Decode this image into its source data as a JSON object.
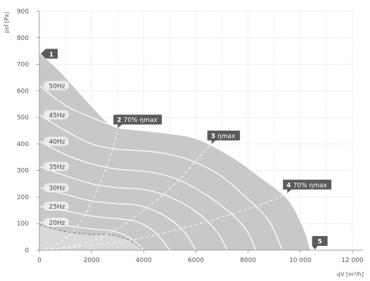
{
  "chart_data": {
    "type": "line",
    "xlabel": "qV [m³/h]",
    "ylabel": "psf [Pa]",
    "xlim": [
      0,
      12000
    ],
    "ylim": [
      0,
      900
    ],
    "x_ticks": [
      0,
      2000,
      4000,
      6000,
      8000,
      10000,
      12000
    ],
    "x_tick_labels": [
      "0",
      "2000",
      "4000",
      "6000",
      "8000",
      "10 000",
      "12 000"
    ],
    "y_ticks": [
      0,
      100,
      200,
      300,
      400,
      500,
      600,
      700,
      800,
      900
    ],
    "y_tick_labels": [
      "0",
      "100",
      "200",
      "300",
      "400",
      "500",
      "600",
      "700",
      "800",
      "900"
    ],
    "grid": true,
    "area_color": "#c8c8c8",
    "inner_area_color": "#d9d9d9",
    "curve_color": "#ffffff",
    "label_bg_color": "#5b5b5b",
    "envelope": [
      {
        "x": 0,
        "y": 740
      },
      {
        "x": 700,
        "y": 680
      },
      {
        "x": 1400,
        "y": 605
      },
      {
        "x": 2000,
        "y": 540
      },
      {
        "x": 2600,
        "y": 480
      },
      {
        "x": 3000,
        "y": 460
      },
      {
        "x": 3600,
        "y": 452
      },
      {
        "x": 4400,
        "y": 445
      },
      {
        "x": 5200,
        "y": 437
      },
      {
        "x": 6000,
        "y": 420
      },
      {
        "x": 6600,
        "y": 395
      },
      {
        "x": 7400,
        "y": 350
      },
      {
        "x": 8200,
        "y": 295
      },
      {
        "x": 9000,
        "y": 235
      },
      {
        "x": 9600,
        "y": 185
      },
      {
        "x": 9900,
        "y": 130
      },
      {
        "x": 10200,
        "y": 60
      },
      {
        "x": 10400,
        "y": 0
      }
    ],
    "inner_boundary": [
      {
        "x": 0,
        "y": 95
      },
      {
        "x": 900,
        "y": 72
      },
      {
        "x": 1800,
        "y": 60
      },
      {
        "x": 2700,
        "y": 58
      },
      {
        "x": 3400,
        "y": 40
      },
      {
        "x": 3800,
        "y": 15
      },
      {
        "x": 4000,
        "y": 0
      }
    ],
    "series": [
      {
        "name": "50Hz",
        "points": [
          {
            "x": 0,
            "y": 620
          },
          {
            "x": 1000,
            "y": 545
          },
          {
            "x": 2000,
            "y": 500
          },
          {
            "x": 3000,
            "y": 465
          },
          {
            "x": 4500,
            "y": 445
          },
          {
            "x": 6000,
            "y": 420
          },
          {
            "x": 7400,
            "y": 350
          },
          {
            "x": 8600,
            "y": 265
          },
          {
            "x": 9500,
            "y": 195
          },
          {
            "x": 10100,
            "y": 90
          },
          {
            "x": 10400,
            "y": 0
          }
        ]
      },
      {
        "name": "45Hz",
        "points": [
          {
            "x": 0,
            "y": 510
          },
          {
            "x": 1000,
            "y": 450
          },
          {
            "x": 2000,
            "y": 400
          },
          {
            "x": 3000,
            "y": 380
          },
          {
            "x": 4400,
            "y": 370
          },
          {
            "x": 5600,
            "y": 345
          },
          {
            "x": 6800,
            "y": 290
          },
          {
            "x": 7800,
            "y": 210
          },
          {
            "x": 8800,
            "y": 110
          },
          {
            "x": 9300,
            "y": 0
          }
        ]
      },
      {
        "name": "40Hz",
        "points": [
          {
            "x": 0,
            "y": 410
          },
          {
            "x": 1000,
            "y": 360
          },
          {
            "x": 2000,
            "y": 325
          },
          {
            "x": 3000,
            "y": 305
          },
          {
            "x": 4200,
            "y": 295
          },
          {
            "x": 5200,
            "y": 270
          },
          {
            "x": 6200,
            "y": 220
          },
          {
            "x": 7200,
            "y": 150
          },
          {
            "x": 7900,
            "y": 80
          },
          {
            "x": 8300,
            "y": 0
          }
        ]
      },
      {
        "name": "35Hz",
        "points": [
          {
            "x": 0,
            "y": 315
          },
          {
            "x": 1000,
            "y": 280
          },
          {
            "x": 2000,
            "y": 250
          },
          {
            "x": 3000,
            "y": 235
          },
          {
            "x": 4000,
            "y": 228
          },
          {
            "x": 5000,
            "y": 200
          },
          {
            "x": 6000,
            "y": 145
          },
          {
            "x": 6800,
            "y": 70
          },
          {
            "x": 7200,
            "y": 0
          }
        ]
      },
      {
        "name": "30Hz",
        "points": [
          {
            "x": 0,
            "y": 235
          },
          {
            "x": 1000,
            "y": 210
          },
          {
            "x": 2000,
            "y": 185
          },
          {
            "x": 3000,
            "y": 175
          },
          {
            "x": 3800,
            "y": 168
          },
          {
            "x": 4700,
            "y": 135
          },
          {
            "x": 5500,
            "y": 75
          },
          {
            "x": 6000,
            "y": 0
          }
        ]
      },
      {
        "name": "25Hz",
        "points": [
          {
            "x": 0,
            "y": 165
          },
          {
            "x": 1000,
            "y": 148
          },
          {
            "x": 2000,
            "y": 128
          },
          {
            "x": 3000,
            "y": 118
          },
          {
            "x": 3700,
            "y": 108
          },
          {
            "x": 4400,
            "y": 70
          },
          {
            "x": 5000,
            "y": 0
          }
        ]
      },
      {
        "name": "20Hz",
        "points": [
          {
            "x": 0,
            "y": 105
          },
          {
            "x": 1000,
            "y": 92
          },
          {
            "x": 2000,
            "y": 80
          },
          {
            "x": 2800,
            "y": 72
          },
          {
            "x": 3400,
            "y": 50
          },
          {
            "x": 3800,
            "y": 20
          },
          {
            "x": 4000,
            "y": 0
          }
        ]
      }
    ],
    "efficiency_lines": [
      {
        "name": "70% ηmax left",
        "points": [
          {
            "x": 0,
            "y": 0
          },
          {
            "x": 700,
            "y": 25
          },
          {
            "x": 1300,
            "y": 70
          },
          {
            "x": 1900,
            "y": 160
          },
          {
            "x": 2400,
            "y": 270
          },
          {
            "x": 2800,
            "y": 380
          },
          {
            "x": 3000,
            "y": 460
          }
        ]
      },
      {
        "name": "ηmax",
        "points": [
          {
            "x": 0,
            "y": 0
          },
          {
            "x": 1500,
            "y": 20
          },
          {
            "x": 2800,
            "y": 70
          },
          {
            "x": 4000,
            "y": 150
          },
          {
            "x": 5200,
            "y": 250
          },
          {
            "x": 6300,
            "y": 370
          },
          {
            "x": 6600,
            "y": 400
          }
        ]
      },
      {
        "name": "70% ηmax right",
        "points": [
          {
            "x": 0,
            "y": 0
          },
          {
            "x": 3000,
            "y": 30
          },
          {
            "x": 5000,
            "y": 70
          },
          {
            "x": 7000,
            "y": 125
          },
          {
            "x": 8600,
            "y": 175
          },
          {
            "x": 9500,
            "y": 215
          }
        ]
      }
    ],
    "markers": [
      {
        "num": "1",
        "label": "",
        "x": 0,
        "y": 740
      },
      {
        "num": "2",
        "label": "70% ηmax",
        "x": 3000,
        "y": 460
      },
      {
        "num": "3",
        "label": "ηmax",
        "x": 6600,
        "y": 400
      },
      {
        "num": "4",
        "label": "70% ηmax",
        "x": 9500,
        "y": 215
      },
      {
        "num": "5",
        "label": "",
        "x": 10400,
        "y": 0
      }
    ]
  }
}
